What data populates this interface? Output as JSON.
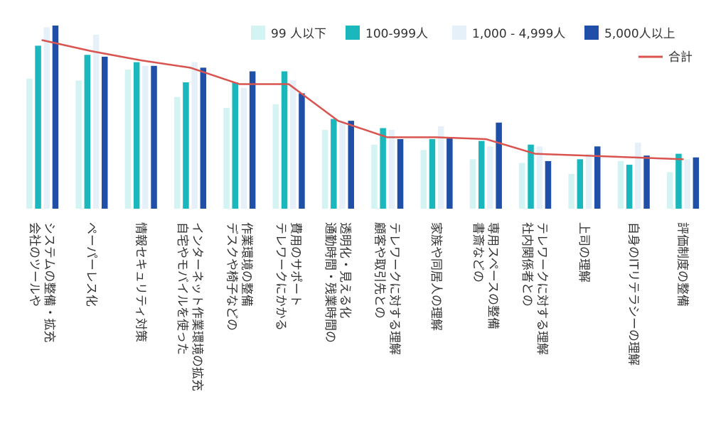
{
  "chart_data": {
    "type": "bar",
    "title": "",
    "xlabel": "",
    "ylabel": "",
    "ylim": [
      0,
      100
    ],
    "grid": false,
    "legend_position": "top-right",
    "categories": [
      "会社のツールや\nシステムの整備・拡充",
      "ペーパーレス化",
      "情報セキュリティ対策",
      "自宅やモバイルを使った\nインターネット作業環境の拡充",
      "デスクや椅子などの\n作業環境の整備",
      "テレワークにかかる\n費用のサポート",
      "通勤時間・残業時間の\n透明化・見える化",
      "顧客や取引先との\nテレワークに対する理解",
      "家族や同居人の理解",
      "書斎などの\n専用スペースの整備",
      "社内関係者との\nテレワークに対する理解",
      "上司の理解",
      "自身のITリテラシーの理解",
      "評価制度の整備"
    ],
    "series": [
      {
        "name": "99 人以下",
        "kind": "bar",
        "color": "#d4f3f3",
        "values": [
          71,
          70,
          76,
          61,
          55,
          57,
          43,
          35,
          32,
          27,
          25,
          19,
          26,
          20
        ]
      },
      {
        "name": "100-999人",
        "kind": "bar",
        "color": "#1ab8bd",
        "values": [
          89,
          84,
          80,
          69,
          69,
          75,
          49,
          44,
          38,
          37,
          35,
          27,
          24,
          30
        ]
      },
      {
        "name": "1,000 - 4,999人",
        "kind": "bar",
        "color": "#e5f0f9",
        "values": [
          99,
          95,
          78,
          80,
          66,
          70,
          48,
          43,
          45,
          34,
          34,
          30,
          36,
          27
        ]
      },
      {
        "name": "5,000人以上",
        "kind": "bar",
        "color": "#1f4fa6",
        "values": [
          100,
          83,
          78,
          77,
          75,
          63,
          48,
          38,
          39,
          47,
          26,
          34,
          29,
          28
        ]
      },
      {
        "name": "合計",
        "kind": "line",
        "color": "#d9534f",
        "values": [
          92,
          86,
          81,
          77,
          68,
          68,
          48,
          39,
          39,
          38,
          30,
          29,
          28,
          27
        ]
      }
    ]
  }
}
